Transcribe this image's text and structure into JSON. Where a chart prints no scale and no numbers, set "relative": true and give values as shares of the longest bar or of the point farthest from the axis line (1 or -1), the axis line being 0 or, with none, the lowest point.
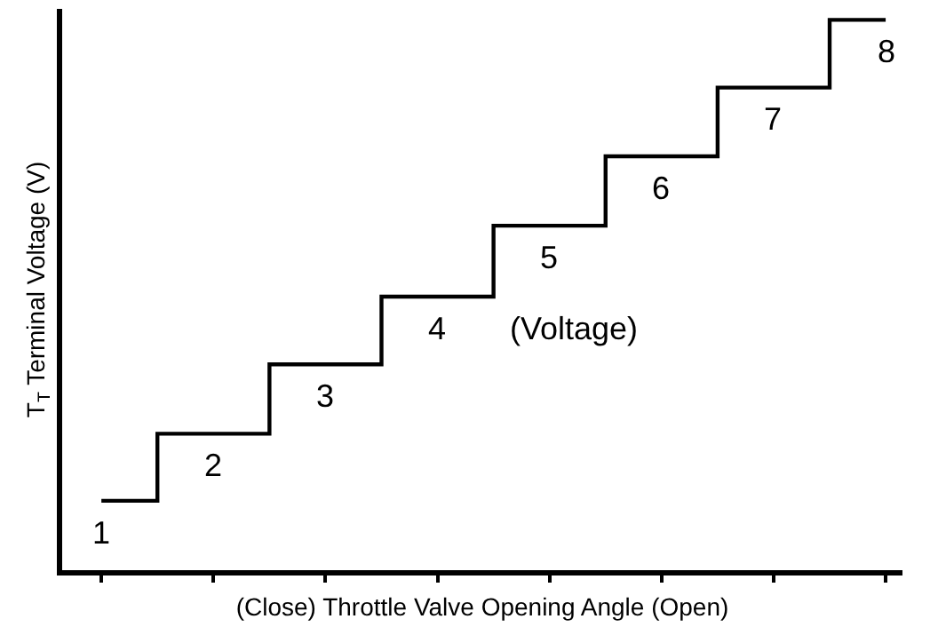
{
  "chart_data": {
    "type": "step",
    "relative": true,
    "line_style": "solid",
    "marker": "none",
    "xlabel": "(Close) Throttle Valve Opening Angle (Open)",
    "ylabel": "T$_{T}$ Terminal Voltage (V)",
    "categories": [
      "1",
      "2",
      "3",
      "4",
      "5",
      "6",
      "7",
      "8"
    ],
    "series": [
      {
        "color": "#000000",
        "values": [
          0.126,
          0.248,
          0.374,
          0.497,
          0.626,
          0.752,
          0.877,
          1
        ]
      }
    ],
    "annotations": [
      "(Voltage)"
    ]
  }
}
